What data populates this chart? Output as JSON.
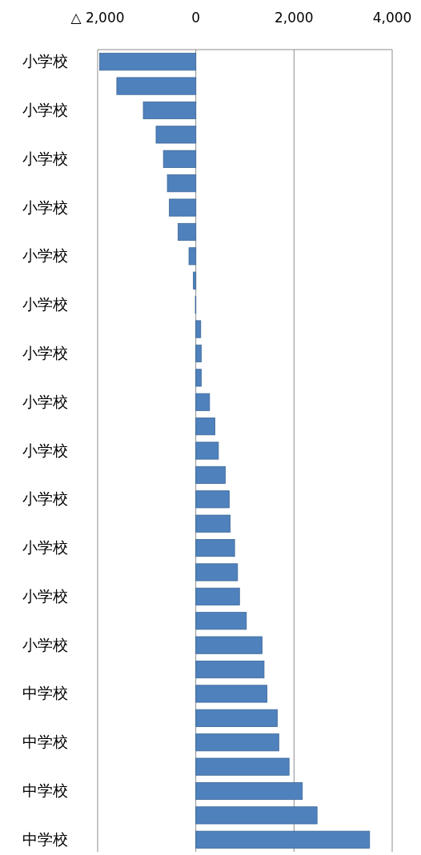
{
  "chart_data": {
    "type": "bar",
    "orientation": "horizontal",
    "categories": [
      "小学校",
      null,
      "小学校",
      null,
      "小学校",
      null,
      "小学校",
      null,
      "小学校",
      null,
      "小学校",
      null,
      "小学校",
      null,
      "小学校",
      null,
      "小学校",
      null,
      "小学校",
      null,
      "小学校",
      null,
      "小学校",
      null,
      "小学校",
      null,
      "中学校",
      null,
      "中学校",
      null,
      "中学校",
      null,
      "中学校"
    ],
    "values": [
      -1960,
      -1610,
      -1070,
      -810,
      -660,
      -580,
      -540,
      -360,
      -140,
      -50,
      -10,
      100,
      110,
      110,
      280,
      390,
      460,
      600,
      680,
      700,
      790,
      850,
      890,
      1030,
      1350,
      1390,
      1450,
      1660,
      1690,
      1900,
      2170,
      2470,
      3540
    ],
    "color": "#4f81bd",
    "xlim": [
      -2000,
      4000
    ],
    "xticks": [
      {
        "value": -2000,
        "label": "△ 2,000"
      },
      0,
      {
        "value": 2000,
        "label": "2,000"
      },
      {
        "value": 4000,
        "label": "4,000"
      }
    ],
    "grid": "x"
  }
}
